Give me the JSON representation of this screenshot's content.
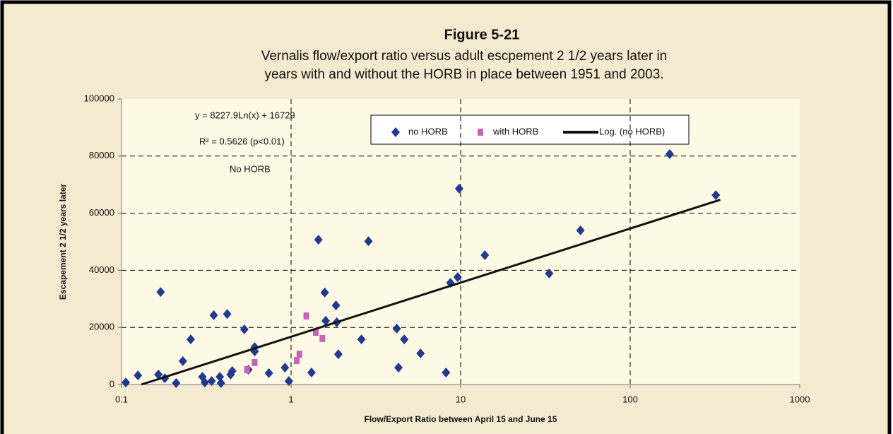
{
  "chart_data": {
    "type": "scatter",
    "title": "Figure 5-21",
    "subtitle": [
      "Vernalis flow/export ratio versus adult escpement 2 1/2 years later in",
      "years with and without the HORB in place between 1951 and 2003."
    ],
    "x_label": "Flow/Export Ratio between April 15 and June 15",
    "y_label": "Escapement 2 1/2 years later",
    "annotations": [
      "y = 8227.9Ln(x) + 16729",
      "R² = 0.5626 (p<0.01)",
      "No HORB"
    ],
    "x_scale": "log",
    "grid": true,
    "legend": "top",
    "xlim": [
      0.1,
      1000
    ],
    "xticks": [
      0.1,
      1,
      10,
      100,
      1000
    ],
    "ylim": [
      0,
      100000
    ],
    "yticks": [
      0,
      20000,
      40000,
      60000,
      80000,
      100000
    ],
    "series": [
      {
        "name": "no HORB",
        "color": "#1f3a8f",
        "marker": "diamond",
        "x": [
          0.106,
          0.125,
          0.165,
          0.17,
          0.18,
          0.21,
          0.23,
          0.256,
          0.3,
          0.31,
          0.34,
          0.35,
          0.38,
          0.386,
          0.42,
          0.44,
          0.45,
          0.53,
          0.56,
          0.61,
          0.61,
          0.74,
          0.92,
          0.97,
          1.32,
          1.45,
          1.58,
          1.6,
          1.84,
          1.86,
          1.9,
          2.6,
          2.86,
          4.2,
          4.3,
          4.65,
          5.8,
          8.2,
          8.7,
          9.6,
          9.8,
          13.9,
          33.3,
          50.9,
          171,
          320
        ],
        "values": [
          700,
          3200,
          3500,
          32400,
          2200,
          500,
          8200,
          15800,
          2700,
          700,
          1200,
          24300,
          2700,
          500,
          24700,
          3500,
          4700,
          19300,
          5200,
          11600,
          13100,
          4000,
          5900,
          1200,
          4200,
          50700,
          32200,
          22300,
          27700,
          21800,
          10600,
          15800,
          50200,
          19600,
          5900,
          15800,
          10900,
          4200,
          35600,
          37600,
          68600,
          45300,
          38900,
          54000,
          80700,
          66300
        ]
      },
      {
        "name": "with HORB",
        "color": "#c864b8",
        "marker": "square",
        "x": [
          0.55,
          0.61,
          1.08,
          1.12,
          1.23,
          1.4,
          1.53
        ],
        "values": [
          5200,
          7700,
          8400,
          10600,
          24000,
          18300,
          16100
        ]
      },
      {
        "name": "Log. (no HORB)",
        "color": "#111111",
        "marker": "line",
        "x": [
          0.131,
          340
        ],
        "values": [
          0,
          64700
        ]
      }
    ]
  }
}
